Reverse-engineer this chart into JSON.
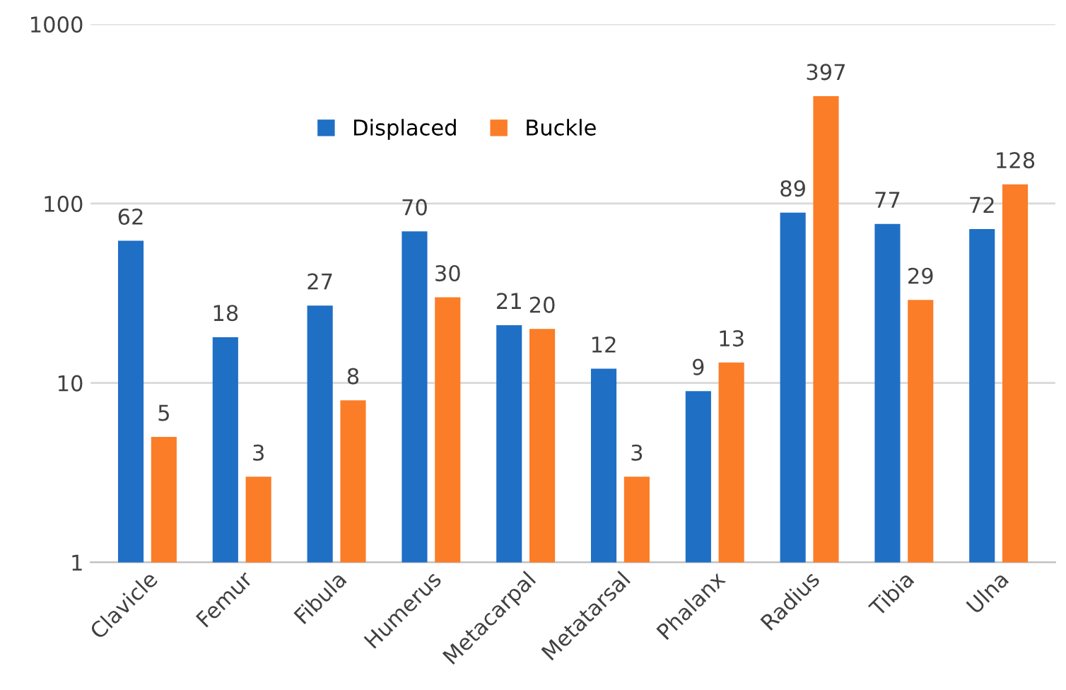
{
  "chart_data": {
    "type": "bar",
    "categories": [
      "Clavicle",
      "Femur",
      "Fibula",
      "Humerus",
      "Metacarpal",
      "Metatarsal",
      "Phalanx",
      "Radius",
      "Tibia",
      "Ulna"
    ],
    "series": [
      {
        "name": "Displaced",
        "color": "#1f6fc5",
        "values": [
          62,
          18,
          27,
          70,
          21,
          12,
          9,
          89,
          77,
          72
        ]
      },
      {
        "name": "Buckle",
        "color": "#fb7d28",
        "values": [
          5,
          3,
          8,
          30,
          20,
          3,
          13,
          397,
          29,
          128
        ]
      }
    ],
    "log": true,
    "ylim": [
      1,
      1000
    ],
    "yticks": [
      1,
      10,
      100,
      1000
    ],
    "grid": "y",
    "legend": "top",
    "data_labels": true
  }
}
